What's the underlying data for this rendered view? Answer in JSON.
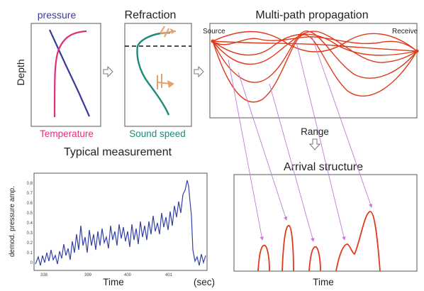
{
  "labels": {
    "pressure": "pressure",
    "refraction": "Refraction",
    "multipath": "Multi-path propagation",
    "depth": "Depth",
    "source": "Source",
    "receiver": "Receive",
    "temperature": "Temperature",
    "sound_speed": "Sound speed",
    "range": "Range",
    "typical_measurement": "Typical measurement",
    "arrival_structure": "Arrival structure",
    "time_left": "Time",
    "sec": "(sec)",
    "time_right": "Time",
    "yaxis_label": "demod. pressure amp."
  },
  "colors": {
    "pressure_curve": "#3a3a9a",
    "temperature_curve": "#e0307a",
    "sound_speed_curve": "#1e8a7a",
    "ray": "#e03a1a",
    "trace": "#3340a8",
    "connector": "#c07ad8",
    "arrow": "#e9a070",
    "frame": "#555555"
  },
  "icons": {
    "flow_arrow": "hollow-right-arrow-icon",
    "range_arrow": "hollow-down-arrow-icon"
  },
  "measurement_chart": {
    "yticks": [
      "0.8",
      "0.7",
      "0.6",
      "0.5",
      "0.4",
      "0.3",
      "0.2",
      "0.1",
      "0"
    ],
    "xticks": [
      "338",
      "399",
      "400",
      "401"
    ]
  }
}
